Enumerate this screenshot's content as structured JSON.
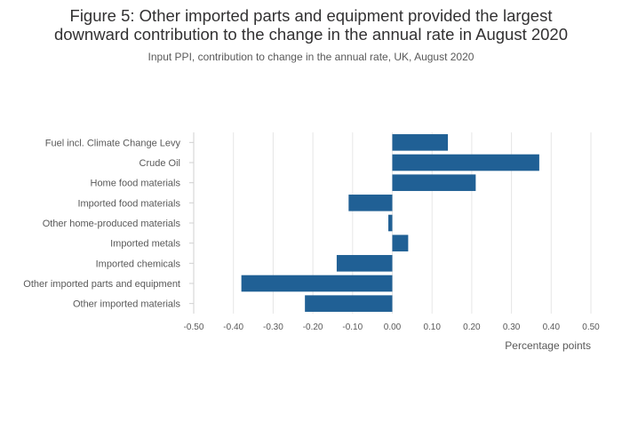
{
  "title_line1": "Figure 5: Other imported parts and equipment provided the largest",
  "title_line2": "downward contribution to the change in the annual rate in August 2020",
  "subtitle": "Input PPI, contribution to change in the annual rate, UK, August 2020",
  "colors": {
    "bar": "#206095",
    "grid": "#e6e6e6",
    "axis": "#d0d0d0"
  },
  "chart_data": {
    "type": "bar",
    "orientation": "horizontal",
    "title": "Figure 5: Other imported parts and equipment provided the largest downward contribution to the change in the annual rate in August 2020",
    "subtitle": "Input PPI, contribution to change in the annual rate, UK, August 2020",
    "xlabel": "Percentage points",
    "ylabel": "",
    "xlim": [
      -0.5,
      0.5
    ],
    "x_ticks": [
      "-0.50",
      "-0.40",
      "-0.30",
      "-0.20",
      "-0.10",
      "0.00",
      "0.10",
      "0.20",
      "0.30",
      "0.40",
      "0.50"
    ],
    "x_tick_values": [
      -0.5,
      -0.4,
      -0.3,
      -0.2,
      -0.1,
      0,
      0.1,
      0.2,
      0.3,
      0.4,
      0.5
    ],
    "grid": true,
    "categories": [
      "Fuel incl. Climate Change Levy",
      "Crude Oil",
      "Home food materials",
      "Imported food materials",
      "Other home-produced materials",
      "Imported metals",
      "Imported chemicals",
      "Other imported parts and equipment",
      "Other imported materials"
    ],
    "values": [
      0.14,
      0.37,
      0.21,
      -0.11,
      -0.01,
      0.04,
      -0.14,
      -0.38,
      -0.22
    ]
  }
}
